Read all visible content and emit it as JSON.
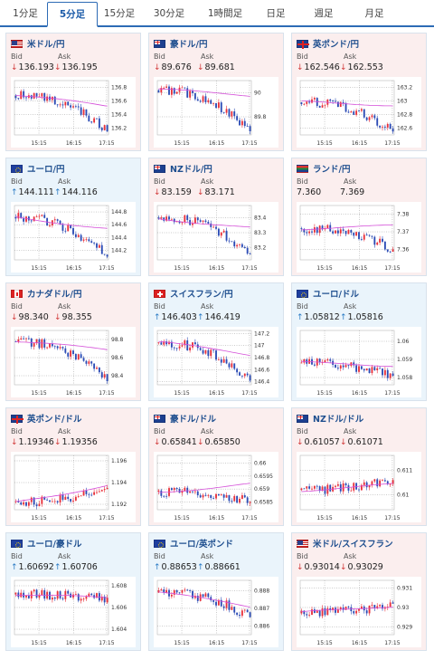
{
  "tabs": [
    {
      "label": "1分足",
      "active": false
    },
    {
      "label": "5分足",
      "active": true
    },
    {
      "label": "15分足",
      "active": false
    },
    {
      "label": "30分足",
      "active": false
    },
    {
      "label": "1時間足",
      "active": false
    },
    {
      "label": "日足",
      "active": false
    },
    {
      "label": "週足",
      "active": false
    },
    {
      "label": "月足",
      "active": false
    }
  ],
  "labels": {
    "bid": "Bid",
    "ask": "Ask"
  },
  "x_ticks": [
    "15:15",
    "16:15",
    "17:15"
  ],
  "colors": {
    "up_bg": "#eaf4fb",
    "down_bg": "#fbeeee",
    "up_arrow": "#2a7ac4",
    "down_arrow": "#d23a3a",
    "candle_up": "#e8303a",
    "candle_down": "#2b4bb5",
    "ma": "#d44ed8"
  },
  "cards": [
    {
      "name": "米ドル/円",
      "flag": "us",
      "trend": "down",
      "bid": "136.193",
      "ask": "136.195",
      "bid_dir": "down",
      "ask_dir": "down",
      "y_ticks": [
        "136.8",
        "136.6",
        "136.4",
        "136.2"
      ],
      "y_range": [
        136.1,
        136.9
      ],
      "start": 136.68,
      "end": 136.15,
      "ma_end": 136.52
    },
    {
      "name": "豪ドル/円",
      "flag": "au",
      "trend": "down",
      "bid": "89.676",
      "ask": "89.681",
      "bid_dir": "down",
      "ask_dir": "down",
      "y_ticks": [
        "90",
        "89.8"
      ],
      "y_range": [
        89.65,
        90.1
      ],
      "start": 90.02,
      "end": 89.68,
      "ma_end": 89.98
    },
    {
      "name": "英ポンド/円",
      "flag": "gb",
      "trend": "down",
      "bid": "162.546",
      "ask": "162.553",
      "bid_dir": "down",
      "ask_dir": "down",
      "y_ticks": [
        "163.2",
        "163",
        "162.8",
        "162.6"
      ],
      "y_range": [
        162.5,
        163.3
      ],
      "start": 162.98,
      "end": 162.55,
      "ma_end": 162.95
    },
    {
      "name": "ユーロ/円",
      "flag": "eu",
      "trend": "up",
      "bid": "144.111",
      "ask": "144.116",
      "bid_dir": "up",
      "ask_dir": "up",
      "y_ticks": [
        "144.8",
        "144.6",
        "144.4",
        "144.2"
      ],
      "y_range": [
        144.05,
        144.9
      ],
      "start": 144.72,
      "end": 144.1,
      "ma_end": 144.55
    },
    {
      "name": "NZドル/円",
      "flag": "nz",
      "trend": "down",
      "bid": "83.159",
      "ask": "83.171",
      "bid_dir": "down",
      "ask_dir": "down",
      "y_ticks": [
        "83.4",
        "83.3",
        "83.2"
      ],
      "y_range": [
        83.12,
        83.48
      ],
      "start": 83.4,
      "end": 83.16,
      "ma_end": 83.33
    },
    {
      "name": "ランド/円",
      "flag": "za",
      "trend": "down",
      "bid": "7.360",
      "ask": "7.369",
      "bid_dir": "none",
      "ask_dir": "none",
      "y_ticks": [
        "7.38",
        "7.37",
        "7.36"
      ],
      "y_range": [
        7.354,
        7.385
      ],
      "start": 7.372,
      "end": 7.36,
      "ma_end": 7.373
    },
    {
      "name": "カナダドル/円",
      "flag": "ca",
      "trend": "down",
      "bid": "98.340",
      "ask": "98.355",
      "bid_dir": "down",
      "ask_dir": "down",
      "y_ticks": [
        "98.8",
        "98.6",
        "98.4"
      ],
      "y_range": [
        98.3,
        98.9
      ],
      "start": 98.78,
      "end": 98.34,
      "ma_end": 98.68
    },
    {
      "name": "スイスフラン/円",
      "flag": "ch",
      "trend": "up",
      "bid": "146.403",
      "ask": "146.419",
      "bid_dir": "up",
      "ask_dir": "up",
      "y_ticks": [
        "147.2",
        "147",
        "146.8",
        "146.6",
        "146.4"
      ],
      "y_range": [
        146.35,
        147.25
      ],
      "start": 147.05,
      "end": 146.42,
      "ma_end": 146.85
    },
    {
      "name": "ユーロ/ドル",
      "flag": "eu",
      "trend": "up",
      "bid": "1.05812",
      "ask": "1.05816",
      "bid_dir": "up",
      "ask_dir": "up",
      "y_ticks": [
        "1.06",
        "1.059",
        "1.058"
      ],
      "y_range": [
        1.0576,
        1.0606
      ],
      "start": 1.0588,
      "end": 1.0581,
      "ma_end": 1.0587
    },
    {
      "name": "英ポンド/ドル",
      "flag": "gb",
      "trend": "down",
      "bid": "1.19346",
      "ask": "1.19356",
      "bid_dir": "down",
      "ask_dir": "down",
      "y_ticks": [
        "1.196",
        "1.194",
        "1.192"
      ],
      "y_range": [
        1.1915,
        1.1965
      ],
      "start": 1.1922,
      "end": 1.1935,
      "ma_end": 1.1938
    },
    {
      "name": "豪ドル/ドル",
      "flag": "au",
      "trend": "down",
      "bid": "0.65841",
      "ask": "0.65850",
      "bid_dir": "down",
      "ask_dir": "down",
      "y_ticks": [
        "0.66",
        "0.6595",
        "0.659",
        "0.6585"
      ],
      "y_range": [
        0.6582,
        0.6603
      ],
      "start": 0.6589,
      "end": 0.6585,
      "ma_end": 0.6592
    },
    {
      "name": "NZドル/ドル",
      "flag": "nz",
      "trend": "down",
      "bid": "0.61057",
      "ask": "0.61071",
      "bid_dir": "down",
      "ask_dir": "down",
      "y_ticks": [
        "0.611",
        "0.61"
      ],
      "y_range": [
        0.6094,
        0.6116
      ],
      "start": 0.6102,
      "end": 0.6106,
      "ma_end": 0.6104
    },
    {
      "name": "ユーロ/豪ドル",
      "flag": "eu",
      "trend": "up",
      "bid": "1.60692",
      "ask": "1.60706",
      "bid_dir": "up",
      "ask_dir": "up",
      "y_ticks": [
        "1.608",
        "1.606",
        "1.604"
      ],
      "y_range": [
        1.6035,
        1.6085
      ],
      "start": 1.6072,
      "end": 1.6069,
      "ma_end": 1.6068
    },
    {
      "name": "ユーロ/英ポンド",
      "flag": "eu",
      "trend": "up",
      "bid": "0.88653",
      "ask": "0.88661",
      "bid_dir": "up",
      "ask_dir": "up",
      "y_ticks": [
        "0.888",
        "0.887",
        "0.886"
      ],
      "y_range": [
        0.8855,
        0.8886
      ],
      "start": 0.8879,
      "end": 0.8865,
      "ma_end": 0.8871
    },
    {
      "name": "米ドル/スイスフラン",
      "flag": "us",
      "trend": "down",
      "bid": "0.93014",
      "ask": "0.93029",
      "bid_dir": "down",
      "ask_dir": "down",
      "y_ticks": [
        "0.931",
        "0.93",
        "0.929"
      ],
      "y_range": [
        0.9286,
        0.9314
      ],
      "start": 0.9297,
      "end": 0.9302,
      "ma_end": 0.9301
    }
  ]
}
